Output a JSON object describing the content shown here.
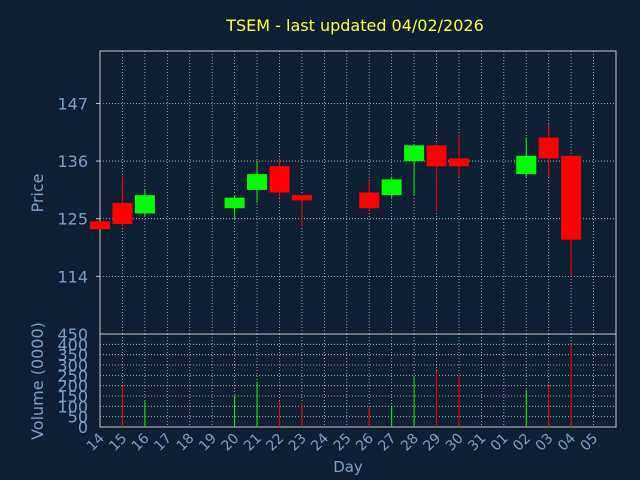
{
  "chart_data": [
    {
      "type": "candlestick",
      "title": "TSEM - last updated 04/02/2026",
      "ylabel": "Price",
      "xlabel": "",
      "ylim": [
        103,
        157
      ],
      "yticks": [
        114,
        125,
        136,
        147
      ],
      "grid": true,
      "x": [
        "14",
        "15",
        "16",
        "17",
        "18",
        "19",
        "20",
        "21",
        "22",
        "23",
        "24",
        "25",
        "26",
        "27",
        "28",
        "29",
        "30",
        "31",
        "01",
        "02",
        "03",
        "04",
        "05"
      ],
      "candles": [
        {
          "day": "14",
          "open": 124.5,
          "high": 124.5,
          "low": 123.0,
          "close": 123.0
        },
        {
          "day": "15",
          "open": 128.0,
          "high": 133.0,
          "low": 123.5,
          "close": 124.0
        },
        {
          "day": "16",
          "open": 126.0,
          "high": 130.5,
          "low": 125.5,
          "close": 129.5
        },
        {
          "day": "20",
          "open": 127.0,
          "high": 129.5,
          "low": 125.0,
          "close": 129.0
        },
        {
          "day": "21",
          "open": 130.5,
          "high": 136.0,
          "low": 128.0,
          "close": 133.5
        },
        {
          "day": "22",
          "open": 135.0,
          "high": 136.5,
          "low": 129.0,
          "close": 130.0
        },
        {
          "day": "23",
          "open": 129.5,
          "high": 129.5,
          "low": 123.5,
          "close": 128.5
        },
        {
          "day": "26",
          "open": 130.0,
          "high": 132.5,
          "low": 126.5,
          "close": 127.0
        },
        {
          "day": "27",
          "open": 129.5,
          "high": 133.0,
          "low": 129.0,
          "close": 132.5
        },
        {
          "day": "28",
          "open": 136.0,
          "high": 139.0,
          "low": 129.5,
          "close": 139.0
        },
        {
          "day": "29",
          "open": 139.0,
          "high": 139.5,
          "low": 126.5,
          "close": 135.0
        },
        {
          "day": "30",
          "open": 136.5,
          "high": 141.0,
          "low": 133.0,
          "close": 135.0
        },
        {
          "day": "02",
          "open": 133.5,
          "high": 140.5,
          "low": 133.0,
          "close": 137.0
        },
        {
          "day": "03",
          "open": 140.5,
          "high": 143.0,
          "low": 133.0,
          "close": 136.5
        },
        {
          "day": "04",
          "open": 137.0,
          "high": 137.0,
          "low": 114.0,
          "close": 121.0
        }
      ],
      "up_color": "#00ff00",
      "down_color": "#ff0000"
    },
    {
      "type": "bar",
      "ylabel": "Volume (0000)",
      "xlabel": "Day",
      "ylim": [
        0,
        450
      ],
      "yticks": [
        0,
        50,
        100,
        150,
        200,
        250,
        300,
        350,
        400,
        450
      ],
      "grid": true,
      "x": [
        "14",
        "15",
        "16",
        "17",
        "18",
        "19",
        "20",
        "21",
        "22",
        "23",
        "24",
        "25",
        "26",
        "27",
        "28",
        "29",
        "30",
        "31",
        "01",
        "02",
        "03",
        "04",
        "05"
      ],
      "bars": [
        {
          "day": "15",
          "value": 200,
          "dir": "down"
        },
        {
          "day": "16",
          "value": 125,
          "dir": "up"
        },
        {
          "day": "20",
          "value": 150,
          "dir": "up"
        },
        {
          "day": "21",
          "value": 220,
          "dir": "up"
        },
        {
          "day": "22",
          "value": 125,
          "dir": "down"
        },
        {
          "day": "23",
          "value": 120,
          "dir": "down"
        },
        {
          "day": "26",
          "value": 100,
          "dir": "down"
        },
        {
          "day": "27",
          "value": 105,
          "dir": "up"
        },
        {
          "day": "28",
          "value": 240,
          "dir": "up"
        },
        {
          "day": "29",
          "value": 270,
          "dir": "down"
        },
        {
          "day": "30",
          "value": 250,
          "dir": "down"
        },
        {
          "day": "02",
          "value": 180,
          "dir": "up"
        },
        {
          "day": "03",
          "value": 200,
          "dir": "down"
        },
        {
          "day": "04",
          "value": 400,
          "dir": "down"
        }
      ],
      "up_color": "#00ff00",
      "down_color": "#ff0000"
    }
  ],
  "colors": {
    "background": "#0f1f33",
    "title": "#ffff33",
    "axis_text": "#7f9fc8",
    "grid": "#c8c8c8"
  }
}
